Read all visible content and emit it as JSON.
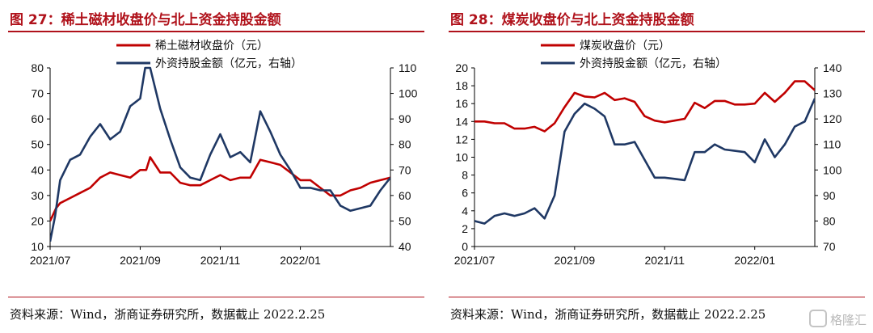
{
  "charts": [
    {
      "title": "图 27：稀土磁材收盘价与北上资金持股金额",
      "source": "资料来源：Wind，浙商证券研究所，数据截止 2022.2.25"
    },
    {
      "title": "图 28：煤炭收盘价与北上资金持股金额",
      "source": "资料来源：Wind，浙商证券研究所，数据截止 2022.2.25"
    }
  ],
  "watermark": {
    "text": "格隆汇"
  },
  "chart_data": [
    {
      "type": "line",
      "title": "图 27：稀土磁材收盘价与北上资金持股金额",
      "x_ticks": [
        "2021/07",
        "2021/09",
        "2021/11",
        "2022/01"
      ],
      "x_range": [
        0,
        34
      ],
      "tick_positions": [
        0,
        9,
        17,
        25
      ],
      "y_left": {
        "min": 10,
        "max": 80,
        "ticks": [
          10,
          20,
          30,
          40,
          50,
          60,
          70,
          80
        ]
      },
      "y_right": {
        "min": 40,
        "max": 110,
        "ticks": [
          40,
          50,
          60,
          70,
          80,
          90,
          100,
          110
        ]
      },
      "legend_position": "top-left",
      "series": [
        {
          "name": "稀土磁材收盘价（元）",
          "axis": "left",
          "color": "#c00000",
          "x": [
            0,
            0.6,
            1,
            2,
            3,
            4,
            5,
            6,
            7,
            8,
            9,
            9.6,
            10,
            11,
            12,
            13,
            14,
            15,
            16,
            17,
            18,
            19,
            20,
            21,
            22,
            23,
            24,
            25,
            26,
            27,
            28,
            29,
            30,
            31,
            32,
            33,
            34
          ],
          "y": [
            20,
            25,
            27,
            29,
            31,
            33,
            37,
            39,
            38,
            37,
            40,
            40,
            45,
            39,
            39,
            35,
            34,
            34,
            36,
            38,
            36,
            37,
            37,
            44,
            43,
            42,
            39,
            36,
            36,
            33,
            30,
            30,
            32,
            33,
            35,
            36,
            37
          ]
        },
        {
          "name": "外资持股金额（亿元，右轴）",
          "axis": "right",
          "color": "#1f3864",
          "x": [
            0,
            0.5,
            1,
            2,
            3,
            4,
            5,
            6,
            7,
            8,
            9,
            9.5,
            10,
            11,
            12,
            13,
            14,
            15,
            16,
            17,
            18,
            19,
            20,
            21,
            22,
            23,
            24,
            25,
            26,
            27,
            28,
            29,
            30,
            31,
            32,
            33,
            34
          ],
          "y": [
            42,
            52,
            66,
            74,
            76,
            83,
            88,
            82,
            85,
            95,
            98,
            110,
            110,
            94,
            82,
            71,
            67,
            66,
            76,
            84,
            75,
            77,
            73,
            93,
            85,
            76,
            70,
            63,
            63,
            62,
            62,
            56,
            54,
            55,
            56,
            62,
            67
          ]
        }
      ]
    },
    {
      "type": "line",
      "title": "图 28：煤炭收盘价与北上资金持股金额",
      "x_ticks": [
        "2021/07",
        "2021/09",
        "2021/11",
        "2022/01"
      ],
      "x_range": [
        0,
        34
      ],
      "tick_positions": [
        0,
        10,
        19,
        28
      ],
      "y_left": {
        "min": 0,
        "max": 20,
        "ticks": [
          0,
          2,
          4,
          6,
          8,
          10,
          12,
          14,
          16,
          18,
          20
        ]
      },
      "y_right": {
        "min": 70,
        "max": 140,
        "ticks": [
          70,
          80,
          90,
          100,
          110,
          120,
          130,
          140
        ]
      },
      "legend_position": "top-left",
      "series": [
        {
          "name": "煤炭收盘价（元）",
          "axis": "left",
          "color": "#c00000",
          "x": [
            0,
            1,
            2,
            3,
            4,
            5,
            6,
            7,
            8,
            9,
            10,
            11,
            12,
            13,
            14,
            15,
            16,
            17,
            18,
            19,
            20,
            21,
            22,
            23,
            24,
            25,
            26,
            27,
            28,
            29,
            30,
            31,
            32,
            33,
            34
          ],
          "y": [
            14,
            14,
            13.8,
            13.8,
            13.2,
            13.2,
            13.4,
            12.9,
            13.8,
            15.6,
            17.2,
            16.8,
            16.7,
            17.2,
            16.4,
            16.6,
            16.2,
            14.6,
            14.1,
            13.9,
            14.1,
            14.3,
            16.1,
            15.5,
            16.3,
            16.3,
            15.9,
            15.9,
            16,
            17.2,
            16.2,
            17.2,
            18.5,
            18.5,
            17.5
          ]
        },
        {
          "name": "外资持股金额（亿元，右轴）",
          "axis": "right",
          "color": "#1f3864",
          "x": [
            0,
            1,
            2,
            3,
            4,
            5,
            6,
            7,
            8,
            9,
            10,
            11,
            12,
            13,
            14,
            15,
            16,
            17,
            18,
            19,
            20,
            21,
            22,
            23,
            24,
            25,
            26,
            27,
            28,
            29,
            30,
            31,
            32,
            33,
            34
          ],
          "y": [
            80,
            79,
            82,
            83,
            82,
            83,
            85,
            81,
            90,
            115,
            122,
            126,
            124,
            121,
            110,
            110,
            111,
            104,
            97,
            97,
            96.5,
            96,
            107,
            107,
            110,
            108,
            107.5,
            107,
            103,
            112,
            105,
            110,
            117,
            119,
            128
          ]
        }
      ]
    }
  ]
}
